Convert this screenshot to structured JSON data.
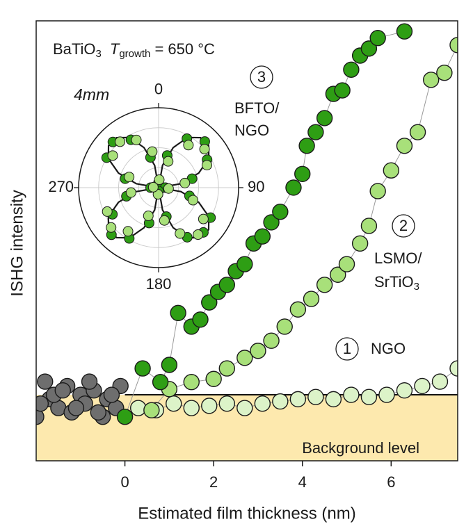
{
  "chart_data": [
    {
      "type": "scatter",
      "xlabel": "Estimated film thickness (nm)",
      "ylabel": "ISHG intensity",
      "xlim": [
        -2,
        7.5
      ],
      "ylim": [
        0,
        100
      ],
      "xticks": [
        0,
        2,
        4,
        6
      ],
      "background_level": 15,
      "background_color": "#fde9ae",
      "annotations": [
        "BaTiO",
        "3",
        "T",
        "growth",
        " = 650 °C",
        "3",
        "BFTO/",
        "NGO",
        "2",
        "LSMO/",
        "SrTiO",
        "3",
        "1",
        "NGO",
        "Background level"
      ],
      "series": [
        {
          "color": "#6e6e6e",
          "lines": false,
          "x": [
            -2,
            -1.8,
            -1.7,
            -1.5,
            -1.3,
            -1.2,
            -1,
            -0.9,
            -0.7,
            -0.5,
            -0.4,
            -0.2,
            -0.1,
            -1.9,
            -1.6,
            -1.1,
            -0.6,
            -0.3,
            -1.4,
            -0.8
          ],
          "values": [
            10,
            18,
            14,
            12,
            17,
            11,
            15,
            13,
            16,
            10,
            14,
            12,
            17,
            13,
            15,
            12,
            11,
            15,
            16,
            18
          ]
        },
        {
          "color": "#dcf3c8",
          "lines": true,
          "x": [
            0.3,
            0.7,
            1.1,
            1.5,
            1.9,
            2.3,
            2.7,
            3.1,
            3.5,
            3.9,
            4.3,
            4.7,
            5.1,
            5.5,
            5.9,
            6.3,
            6.7,
            7.1,
            7.5
          ],
          "values": [
            12,
            11.5,
            13,
            12,
            12.5,
            13,
            12,
            13,
            13.5,
            14,
            14.5,
            14,
            15,
            14.5,
            15,
            16,
            17,
            18,
            21
          ]
        },
        {
          "color": "#a8e07a",
          "lines": true,
          "x": [
            0.6,
            1,
            1.5,
            2,
            2.3,
            2.7,
            3,
            3.3,
            3.6,
            3.9,
            4.2,
            4.5,
            4.8,
            5,
            5.3,
            5.5,
            5.7,
            6,
            6.3,
            6.6,
            6.9,
            7.2,
            7.5
          ],
          "values": [
            11.5,
            16.3,
            17.9,
            18.6,
            21,
            23.4,
            25,
            27.3,
            30.5,
            34.4,
            36.8,
            40,
            42.3,
            44.7,
            49.4,
            53.4,
            61.3,
            66,
            71.6,
            74.7,
            86.6,
            88.2,
            94.5
          ]
        },
        {
          "color": "#2e9e14",
          "lines": true,
          "x": [
            0,
            0.4,
            0.8,
            1,
            1.2,
            1.5,
            1.7,
            1.9,
            2.1,
            2.3,
            2.5,
            2.7,
            2.9,
            3.1,
            3.3,
            3.5,
            3.8,
            4,
            4.1,
            4.3,
            4.5,
            4.7,
            4.9,
            5.1,
            5.3,
            5.5,
            5.7,
            6.3
          ],
          "values": [
            10,
            21,
            17.9,
            21.8,
            33.6,
            30.5,
            32.1,
            36,
            38.4,
            40,
            43.1,
            44.7,
            49.4,
            51,
            54.2,
            56.6,
            62.1,
            65.2,
            71.6,
            74.7,
            77.9,
            83.4,
            84.2,
            88.9,
            92.1,
            93.7,
            96.1,
            97.6
          ]
        }
      ]
    },
    {
      "type": "polar",
      "title": "4mm",
      "rlim": [
        0,
        1.2
      ],
      "rticks": [
        0.3,
        0.6,
        0.9
      ],
      "thetaticks": [
        0,
        90,
        180,
        270
      ],
      "fit_angles": [
        0,
        10,
        20,
        30,
        40,
        50,
        60,
        70,
        80,
        90,
        100,
        110,
        120,
        130,
        140,
        150,
        160,
        170,
        180,
        190,
        200,
        210,
        220,
        230,
        240,
        250,
        260,
        270,
        280,
        290,
        300,
        310,
        320,
        330,
        340,
        350
      ],
      "fit_values": [
        0,
        0.34,
        0.64,
        0.87,
        0.98,
        0.98,
        0.87,
        0.64,
        0.34,
        0,
        0.34,
        0.64,
        0.87,
        0.98,
        0.98,
        0.87,
        0.64,
        0.34,
        0,
        0.34,
        0.64,
        0.87,
        0.98,
        0.98,
        0.87,
        0.64,
        0.34,
        0,
        0.34,
        0.64,
        0.87,
        0.98,
        0.98,
        0.87,
        0.64,
        0.34
      ],
      "series": [
        {
          "color": "#2e9e14",
          "angles": [
            0,
            15,
            30,
            45,
            60,
            75,
            90,
            105,
            120,
            135,
            150,
            165,
            180,
            195,
            210,
            225,
            240,
            255,
            270,
            285,
            300,
            315,
            330,
            345
          ],
          "values": [
            0.08,
            0.5,
            0.85,
            0.98,
            0.84,
            0.52,
            0.1,
            0.48,
            0.9,
            0.95,
            0.86,
            0.45,
            0.05,
            0.55,
            0.88,
            1.0,
            0.8,
            0.5,
            0.12,
            0.52,
            0.9,
            0.97,
            0.83,
            0.47
          ]
        },
        {
          "color": "#a8e07a",
          "angles": [
            5,
            20,
            35,
            50,
            65,
            80,
            95,
            110,
            125,
            140,
            155,
            170,
            185,
            200,
            215,
            230,
            245,
            260,
            275,
            290,
            305,
            320,
            335,
            350
          ],
          "values": [
            0.12,
            0.42,
            0.78,
            0.9,
            0.8,
            0.4,
            0.15,
            0.55,
            0.82,
            0.92,
            0.76,
            0.5,
            0.1,
            0.45,
            0.8,
            0.93,
            0.85,
            0.42,
            0.08,
            0.47,
            0.84,
            0.9,
            0.79,
            0.55
          ]
        }
      ]
    }
  ]
}
